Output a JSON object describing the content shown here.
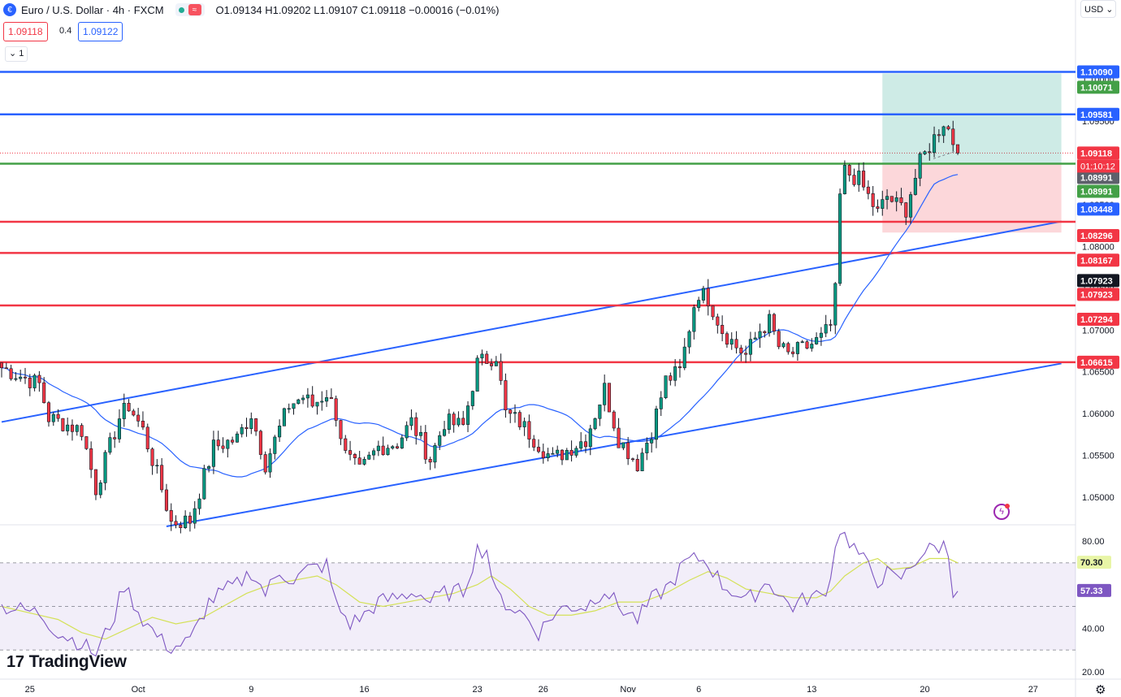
{
  "header": {
    "title": "Euro / U.S. Dollar · 4h · FXCM",
    "ohlc": "O1.09134 H1.09202 L1.09107 C1.09118 −0.00016 (−0.01%)",
    "sell_price": "1.09118",
    "spread": "0.4",
    "buy_price": "1.09122",
    "indicator_collapse": "1"
  },
  "currency": "USD",
  "brand": "TradingView",
  "chart_data": [
    {
      "type": "candlestick",
      "title": "Euro / U.S. Dollar · 4h · FXCM",
      "ylim": [
        1.0465,
        1.1095
      ],
      "y_ticks": [
        1.05,
        1.055,
        1.06,
        1.065,
        1.07,
        1.075,
        1.08,
        1.085,
        1.09,
        1.095,
        1.1
      ],
      "y_tick_labels": [
        "1.05000",
        "1.05500",
        "1.06000",
        "1.06500",
        "1.07000",
        "1.07500",
        "1.08000",
        "1.08500",
        "1.09000",
        "1.09500",
        "1.10000"
      ],
      "x_ticks": [
        {
          "label": "25",
          "bar": 6
        },
        {
          "label": "Oct",
          "bar": 29
        },
        {
          "label": "9",
          "bar": 53
        },
        {
          "label": "16",
          "bar": 77
        },
        {
          "label": "23",
          "bar": 101
        },
        {
          "label": "26",
          "bar": 115
        },
        {
          "label": "Nov",
          "bar": 133
        },
        {
          "label": "6",
          "bar": 148
        },
        {
          "label": "13",
          "bar": 172
        },
        {
          "label": "20",
          "bar": 196
        },
        {
          "label": "27",
          "bar": 219
        }
      ],
      "path": [
        [
          0,
          1.0655
        ],
        [
          8,
          1.0635
        ],
        [
          10,
          1.0595
        ],
        [
          17,
          1.058
        ],
        [
          20,
          1.051
        ],
        [
          25,
          1.0595
        ],
        [
          27,
          1.061
        ],
        [
          30,
          1.058
        ],
        [
          34,
          1.051
        ],
        [
          36,
          1.047
        ],
        [
          40,
          1.0472
        ],
        [
          45,
          1.056
        ],
        [
          50,
          1.057
        ],
        [
          53,
          1.06
        ],
        [
          56,
          1.054
        ],
        [
          61,
          1.061
        ],
        [
          64,
          1.062
        ],
        [
          66,
          1.061
        ],
        [
          69,
          1.0625
        ],
        [
          71,
          1.06
        ],
        [
          73,
          1.055
        ],
        [
          76,
          1.053
        ],
        [
          80,
          1.056
        ],
        [
          84,
          1.0565
        ],
        [
          87,
          1.059
        ],
        [
          91,
          1.0545
        ],
        [
          94,
          1.059
        ],
        [
          98,
          1.0585
        ],
        [
          101,
          1.066
        ],
        [
          105,
          1.067
        ],
        [
          107,
          1.06
        ],
        [
          110,
          1.059
        ],
        [
          113,
          1.057
        ],
        [
          117,
          1.0545
        ],
        [
          121,
          1.056
        ],
        [
          124,
          1.057
        ],
        [
          128,
          1.063
        ],
        [
          131,
          1.057
        ],
        [
          135,
          1.054
        ],
        [
          138,
          1.058
        ],
        [
          141,
          1.064
        ],
        [
          144,
          1.065
        ],
        [
          147,
          1.073
        ],
        [
          148,
          1.0745
        ],
        [
          150,
          1.0738
        ],
        [
          153,
          1.07
        ],
        [
          156,
          1.068
        ],
        [
          158,
          1.067
        ],
        [
          161,
          1.07
        ],
        [
          163,
          1.071
        ],
        [
          165,
          1.068
        ],
        [
          167,
          1.067
        ],
        [
          171,
          1.068
        ],
        [
          174,
          1.069
        ],
        [
          176,
          1.0705
        ],
        [
          177,
          1.0745
        ],
        [
          178,
          1.086
        ],
        [
          179,
          1.089
        ],
        [
          182,
          1.088
        ],
        [
          184,
          1.086
        ],
        [
          186,
          1.084
        ],
        [
          188,
          1.086
        ],
        [
          190,
          1.085
        ],
        [
          192,
          1.0845
        ],
        [
          193,
          1.0865
        ],
        [
          195,
          1.09
        ],
        [
          198,
          1.093
        ],
        [
          200,
          1.095
        ],
        [
          201,
          1.094
        ],
        [
          203,
          1.0912
        ]
      ],
      "last_price": 1.09118,
      "countdown": "01:10:12",
      "horizontal_lines": [
        {
          "value": 1.1009,
          "color": "#2962ff",
          "label": "1.10090"
        },
        {
          "value": 1.09581,
          "color": "#2962ff",
          "label": "1.09581"
        },
        {
          "value": 1.08991,
          "color": "#43a047",
          "label": "1.08991"
        },
        {
          "value": 1.08296,
          "color": "#f23645",
          "label": "1.08296"
        },
        {
          "value": 1.07923,
          "color": "#f23645",
          "label": "1.07923"
        },
        {
          "value": 1.07294,
          "color": "#f23645",
          "label": "1.07294"
        },
        {
          "value": 1.06615,
          "color": "#f23645",
          "label": "1.06615"
        }
      ],
      "price_labels": [
        {
          "value": 1.1009,
          "text": "1.10090",
          "bg": "#2962ff",
          "fg": "#ffffff"
        },
        {
          "value": 1.10071,
          "text": "1.10071",
          "bg": "#43a047",
          "fg": "#ffffff"
        },
        {
          "value": 1.09581,
          "text": "1.09581",
          "bg": "#2962ff",
          "fg": "#ffffff"
        },
        {
          "value": 1.09118,
          "text": "1.09118",
          "bg": "#f23645",
          "fg": "#ffffff"
        },
        {
          "value": 1.08991,
          "text": "1.08991",
          "bg": "#5d606b",
          "fg": "#ffffff"
        },
        {
          "value": 1.08991,
          "text": "1.08991",
          "bg": "#43a047",
          "fg": "#ffffff"
        },
        {
          "value": 1.08448,
          "text": "1.08448",
          "bg": "#2962ff",
          "fg": "#ffffff"
        },
        {
          "value": 1.08296,
          "text": "1.08296",
          "bg": "#f23645",
          "fg": "#ffffff"
        },
        {
          "value": 1.08167,
          "text": "1.08167",
          "bg": "#f23645",
          "fg": "#ffffff"
        },
        {
          "value": 1.07923,
          "text": "1.07923",
          "bg": "#131722",
          "fg": "#ffffff"
        },
        {
          "value": 1.07923,
          "text": "1.07923",
          "bg": "#f23645",
          "fg": "#ffffff"
        },
        {
          "value": 1.07294,
          "text": "1.07294",
          "bg": "#f23645",
          "fg": "#ffffff"
        },
        {
          "value": 1.06615,
          "text": "1.06615",
          "bg": "#f23645",
          "fg": "#ffffff"
        }
      ],
      "trend_lines": [
        {
          "x1": 0,
          "y1": 1.059,
          "x2": 225,
          "y2": 1.083
        },
        {
          "x1": 35,
          "y1": 1.0465,
          "x2": 225,
          "y2": 1.066
        }
      ],
      "position_tool": {
        "start_bar": 187,
        "end_bar": 225,
        "entry": 1.08991,
        "target": 1.10071,
        "stop": 1.08167
      },
      "moving_average_color": "#2962ff",
      "up_color": "#089981",
      "down_color": "#f23645"
    },
    {
      "type": "line",
      "title": "RSI",
      "ylim": [
        17,
        86
      ],
      "y_tick_labels": [
        "80.00",
        "40.00",
        "20.00"
      ],
      "y_ticks": [
        80,
        40,
        20
      ],
      "band": [
        30,
        70
      ],
      "midline": 50,
      "rsi_path": [
        [
          0,
          50
        ],
        [
          8,
          47
        ],
        [
          12,
          38
        ],
        [
          17,
          33
        ],
        [
          20,
          28
        ],
        [
          24,
          46
        ],
        [
          26,
          60
        ],
        [
          30,
          44
        ],
        [
          34,
          34
        ],
        [
          36,
          31
        ],
        [
          40,
          34
        ],
        [
          44,
          52
        ],
        [
          48,
          58
        ],
        [
          50,
          60
        ],
        [
          53,
          66
        ],
        [
          56,
          56
        ],
        [
          59,
          66
        ],
        [
          62,
          62
        ],
        [
          65,
          67
        ],
        [
          69,
          69
        ],
        [
          71,
          51
        ],
        [
          74,
          42
        ],
        [
          77,
          46
        ],
        [
          80,
          52
        ],
        [
          84,
          54
        ],
        [
          88,
          57
        ],
        [
          91,
          52
        ],
        [
          94,
          56
        ],
        [
          98,
          57
        ],
        [
          101,
          76
        ],
        [
          103,
          76
        ],
        [
          105,
          55
        ],
        [
          108,
          50
        ],
        [
          111,
          46
        ],
        [
          114,
          38
        ],
        [
          117,
          46
        ],
        [
          120,
          50
        ],
        [
          124,
          50
        ],
        [
          128,
          58
        ],
        [
          131,
          50
        ],
        [
          135,
          44
        ],
        [
          138,
          53
        ],
        [
          142,
          60
        ],
        [
          145,
          70
        ],
        [
          148,
          72
        ],
        [
          150,
          70
        ],
        [
          153,
          60
        ],
        [
          156,
          56
        ],
        [
          158,
          52
        ],
        [
          161,
          58
        ],
        [
          163,
          62
        ],
        [
          165,
          55
        ],
        [
          168,
          50
        ],
        [
          171,
          54
        ],
        [
          174,
          55
        ],
        [
          176,
          62
        ],
        [
          177,
          80
        ],
        [
          178,
          85
        ],
        [
          180,
          80
        ],
        [
          182,
          74
        ],
        [
          184,
          68
        ],
        [
          186,
          62
        ],
        [
          188,
          65
        ],
        [
          190,
          62
        ],
        [
          192,
          65
        ],
        [
          195,
          74
        ],
        [
          198,
          77
        ],
        [
          200,
          78
        ],
        [
          201,
          74
        ],
        [
          202,
          58
        ],
        [
          203,
          57
        ]
      ],
      "ma_path": [
        [
          0,
          50
        ],
        [
          6,
          47
        ],
        [
          12,
          44
        ],
        [
          17,
          38
        ],
        [
          22,
          35
        ],
        [
          27,
          40
        ],
        [
          32,
          45
        ],
        [
          37,
          42
        ],
        [
          42,
          44
        ],
        [
          47,
          50
        ],
        [
          52,
          56
        ],
        [
          57,
          60
        ],
        [
          62,
          62
        ],
        [
          67,
          64
        ],
        [
          71,
          60
        ],
        [
          76,
          52
        ],
        [
          81,
          50
        ],
        [
          86,
          52
        ],
        [
          91,
          54
        ],
        [
          96,
          56
        ],
        [
          101,
          60
        ],
        [
          104,
          64
        ],
        [
          108,
          58
        ],
        [
          112,
          50
        ],
        [
          116,
          46
        ],
        [
          121,
          46
        ],
        [
          126,
          48
        ],
        [
          131,
          52
        ],
        [
          136,
          52
        ],
        [
          141,
          56
        ],
        [
          146,
          62
        ],
        [
          150,
          66
        ],
        [
          154,
          63
        ],
        [
          158,
          58
        ],
        [
          163,
          56
        ],
        [
          168,
          54
        ],
        [
          173,
          54
        ],
        [
          176,
          57
        ],
        [
          179,
          64
        ],
        [
          183,
          70
        ],
        [
          186,
          72
        ],
        [
          189,
          67
        ],
        [
          193,
          68
        ],
        [
          197,
          72
        ],
        [
          201,
          72
        ],
        [
          203,
          70
        ]
      ],
      "last_rsi": 57.33,
      "last_ma": 70.3,
      "value_labels": [
        {
          "value": 70.3,
          "text": "70.30",
          "bg": "#e8f5a6",
          "fg": "#131722"
        },
        {
          "value": 57.33,
          "text": "57.33",
          "bg": "#7e57c2",
          "fg": "#ffffff"
        }
      ],
      "rsi_color": "#7e57c2",
      "ma_color": "#d4e157"
    }
  ]
}
